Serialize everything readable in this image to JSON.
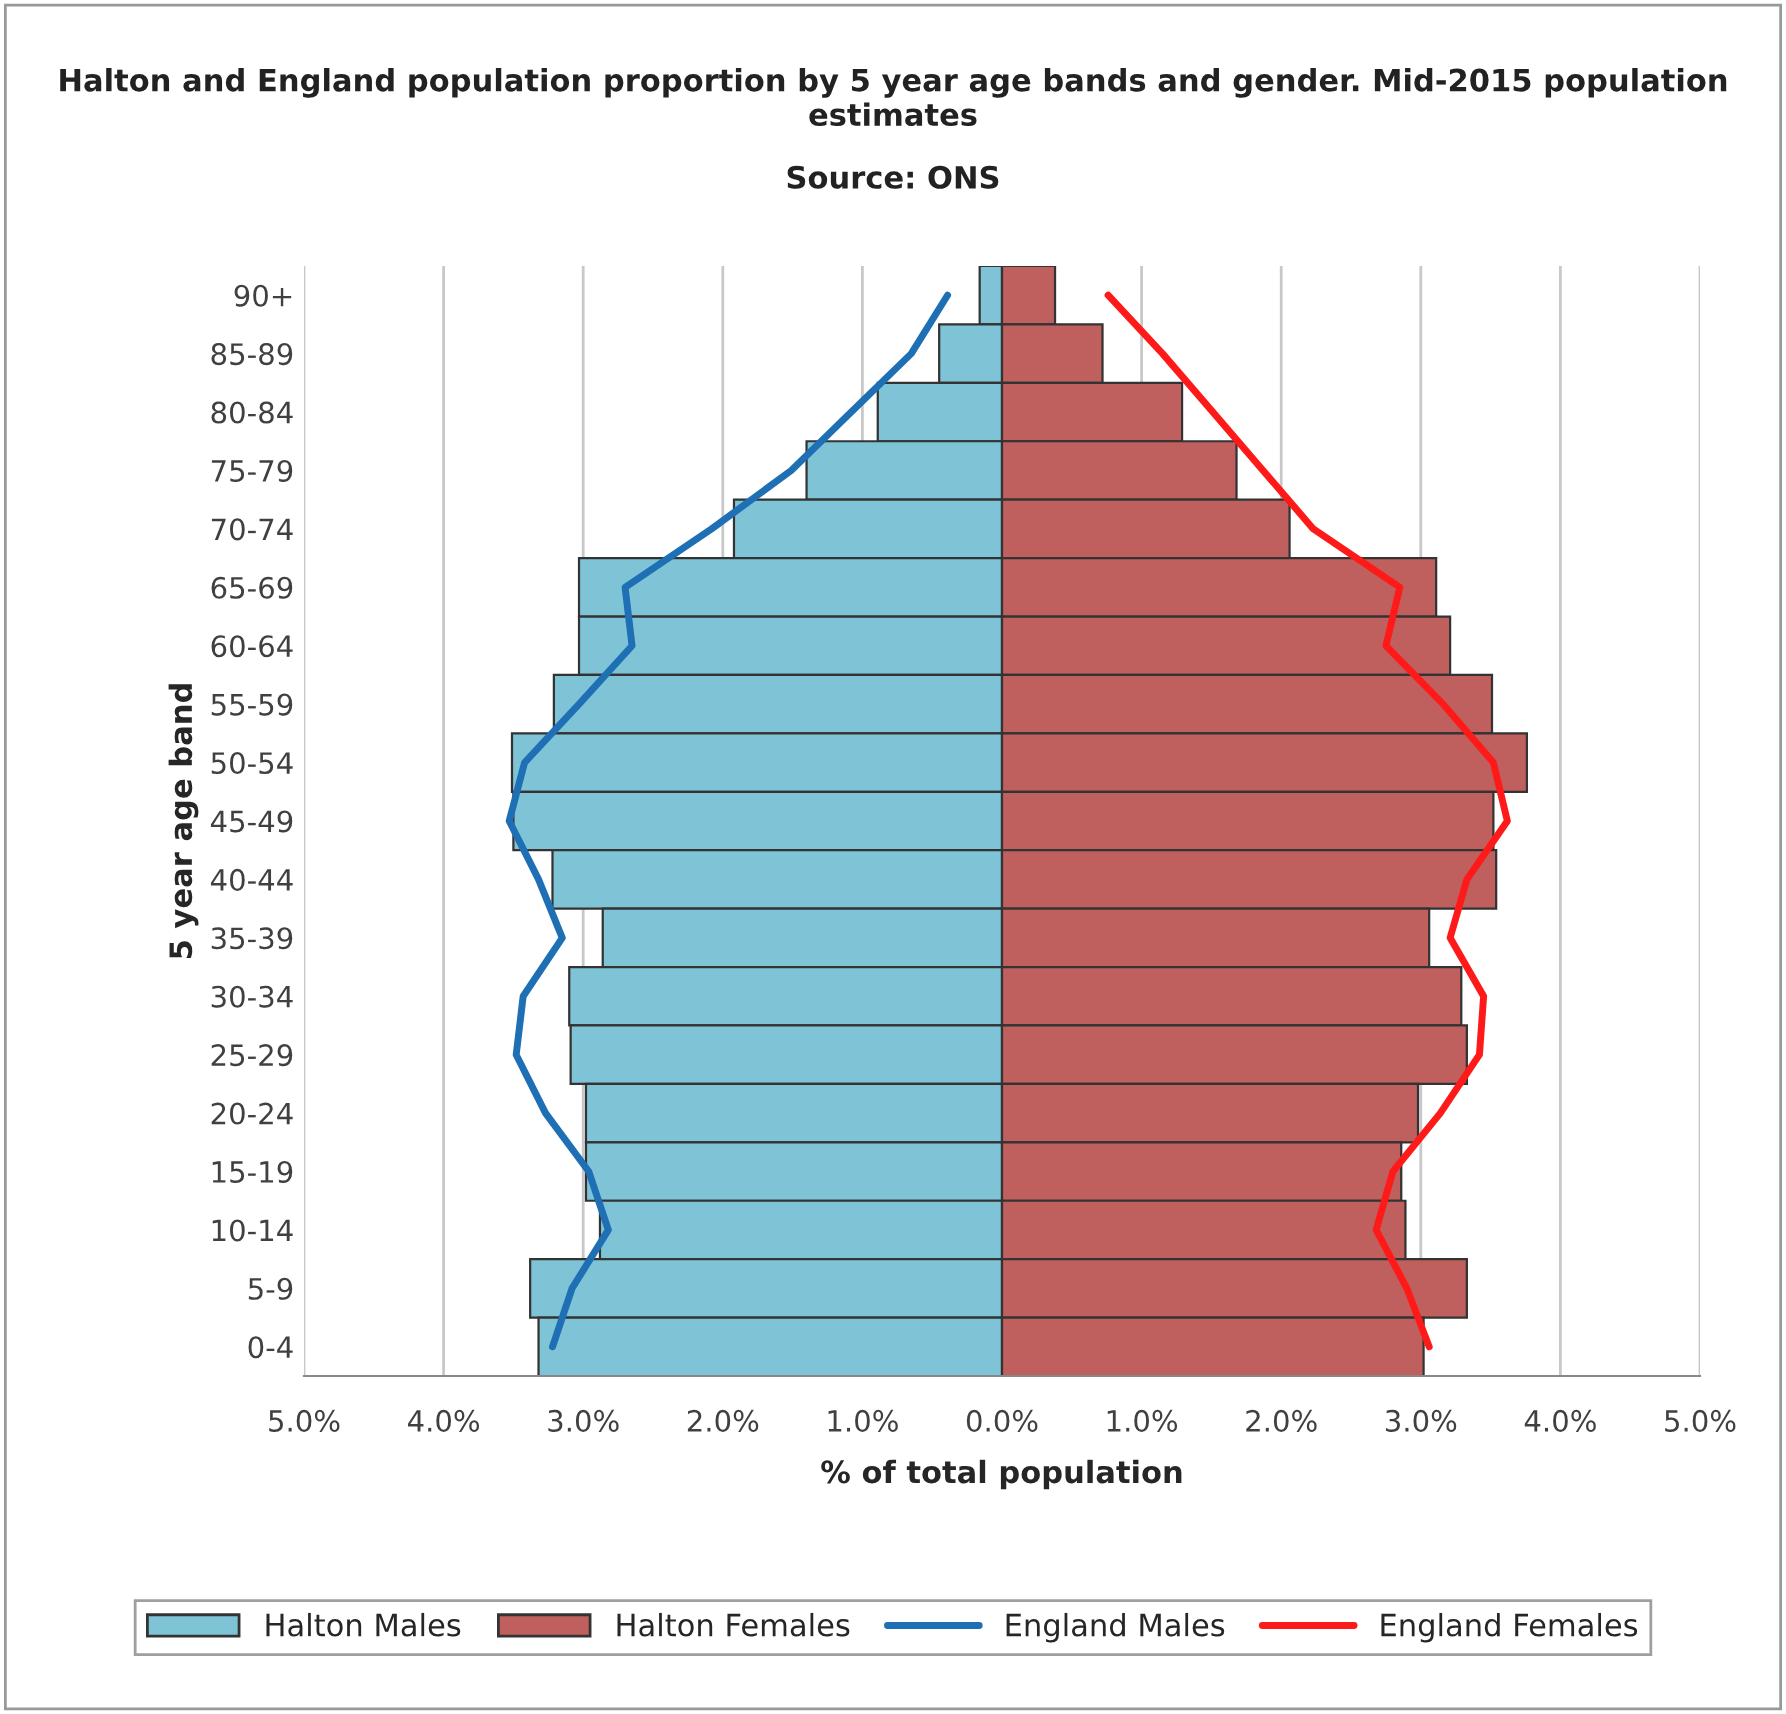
{
  "chart_data": {
    "type": "bar",
    "orientation": "horizontal",
    "title": "Halton and England population proportion by 5 year age bands and gender. Mid-2015 population estimates",
    "subtitle": "Source: ONS",
    "xlabel": "% of total population",
    "ylabel": "5 year age band",
    "categories": [
      "90+",
      "85-89",
      "80-84",
      "75-79",
      "70-74",
      "65-69",
      "60-64",
      "55-59",
      "50-54",
      "45-49",
      "40-44",
      "35-39",
      "30-34",
      "25-29",
      "20-24",
      "15-19",
      "10-14",
      "5-9",
      "0-4"
    ],
    "series": [
      {
        "name": "Halton Males",
        "color": "#7fc4d6",
        "values": [
          -0.16,
          -0.45,
          -0.89,
          -1.4,
          -1.92,
          -3.03,
          -3.03,
          -3.21,
          -3.51,
          -3.5,
          -3.22,
          -2.86,
          -3.1,
          -3.09,
          -2.98,
          -2.98,
          -2.88,
          -3.38,
          -3.32
        ]
      },
      {
        "name": "Halton Females",
        "color": "#c0605e",
        "values": [
          0.38,
          0.72,
          1.29,
          1.68,
          2.06,
          3.11,
          3.21,
          3.51,
          3.76,
          3.52,
          3.54,
          3.06,
          3.29,
          3.33,
          2.98,
          2.86,
          2.89,
          3.33,
          3.02
        ]
      },
      {
        "name": "England Males",
        "type": "line",
        "color": "#1f6fb5",
        "values": [
          -0.39,
          -0.65,
          -1.08,
          -1.51,
          -2.08,
          -2.7,
          -2.65,
          -3.03,
          -3.42,
          -3.53,
          -3.32,
          -3.15,
          -3.43,
          -3.48,
          -3.27,
          -2.96,
          -2.82,
          -3.08,
          -3.22
        ]
      },
      {
        "name": "England Females",
        "type": "line",
        "color": "#ff1a1a",
        "values": [
          0.76,
          1.15,
          1.51,
          1.87,
          2.23,
          2.85,
          2.75,
          3.16,
          3.52,
          3.62,
          3.33,
          3.21,
          3.45,
          3.42,
          3.14,
          2.8,
          2.68,
          2.9,
          3.06
        ]
      }
    ],
    "xlim": [
      -5,
      5
    ],
    "xticks": [
      {
        "value": -5,
        "label": "5.0%"
      },
      {
        "value": -4,
        "label": "4.0%"
      },
      {
        "value": -3,
        "label": "3.0%"
      },
      {
        "value": -2,
        "label": "2.0%"
      },
      {
        "value": -1,
        "label": "1.0%"
      },
      {
        "value": 0,
        "label": "0.0%"
      },
      {
        "value": 1,
        "label": "1.0%"
      },
      {
        "value": 2,
        "label": "2.0%"
      },
      {
        "value": 3,
        "label": "3.0%"
      },
      {
        "value": 4,
        "label": "4.0%"
      },
      {
        "value": 5,
        "label": "5.0%"
      }
    ],
    "grid": "x",
    "legend": "bottom",
    "stacked": true
  }
}
